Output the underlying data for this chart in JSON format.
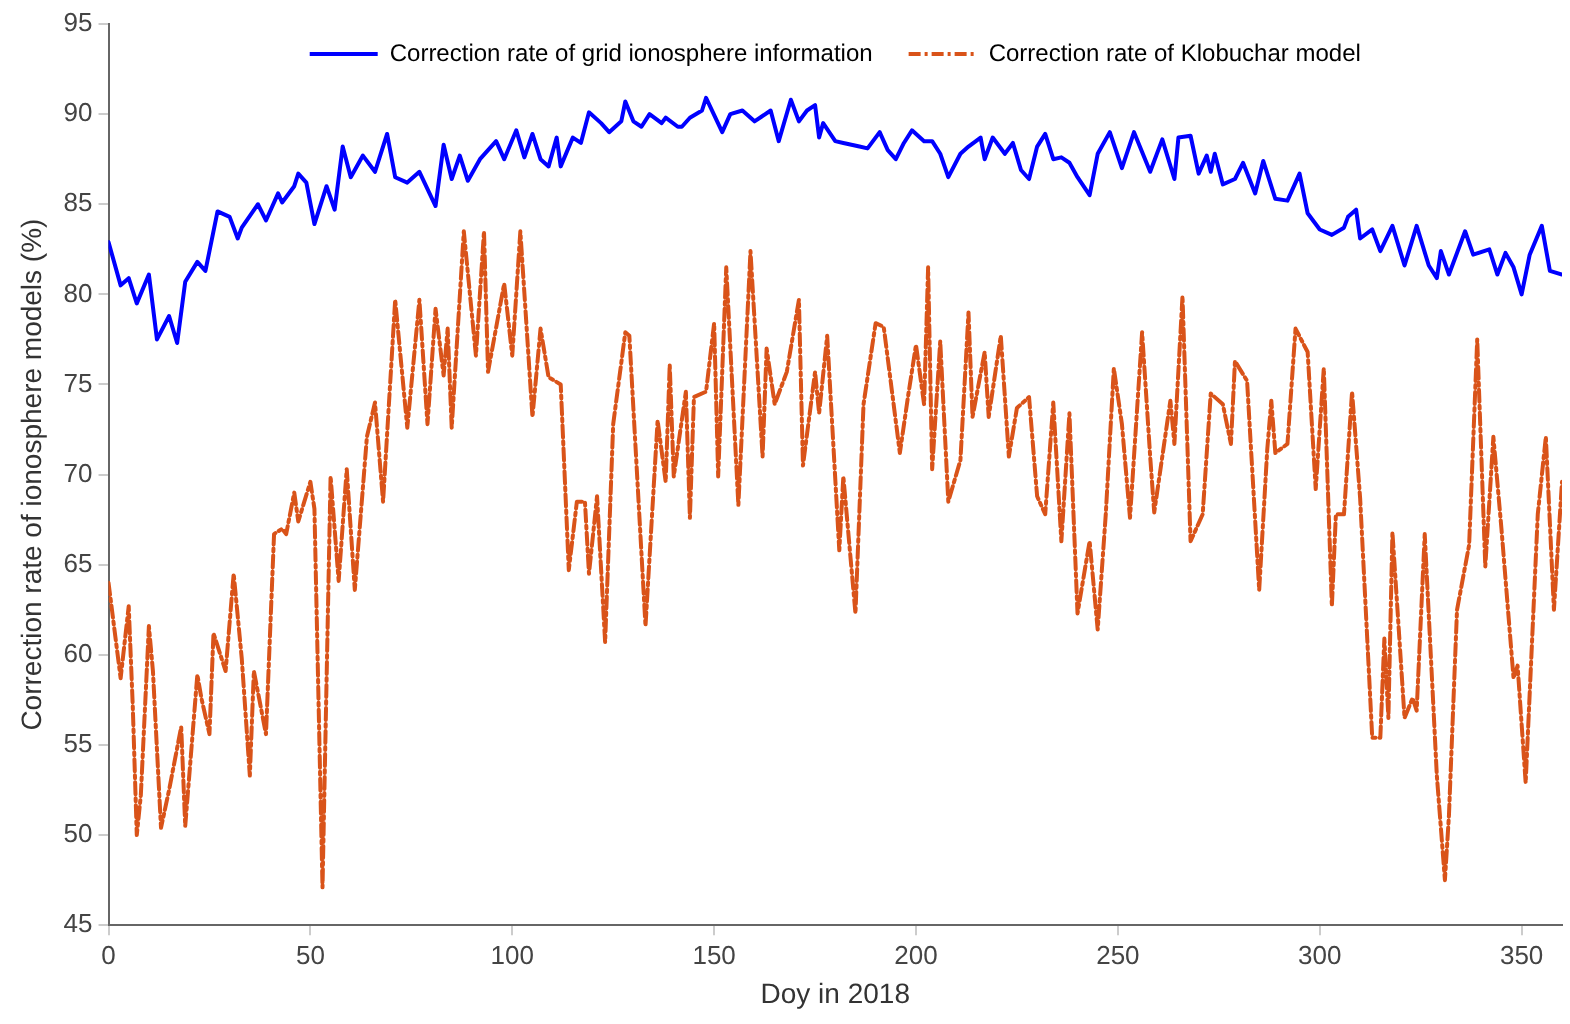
{
  "chart_data": {
    "type": "line",
    "xlabel": "Doy in 2018",
    "ylabel": "Correction rate of ionosphere models (%)",
    "xlim": [
      0,
      360
    ],
    "xticks": [
      0,
      50,
      100,
      150,
      200,
      250,
      300,
      350
    ],
    "ylim": [
      45,
      95
    ],
    "yticks": [
      45,
      50,
      55,
      60,
      65,
      70,
      75,
      80,
      85,
      90,
      95
    ],
    "grid": false,
    "legend": "top",
    "marker": "none",
    "series": [
      {
        "name": "Correction rate of grid ionosphere information",
        "color": "#0000ff",
        "line_style": "solid",
        "x": [
          0,
          3,
          5,
          7,
          10,
          12,
          15,
          17,
          19,
          22,
          24,
          27,
          30,
          32,
          33,
          37,
          39,
          42,
          43,
          46,
          47,
          49,
          51,
          54,
          56,
          58,
          60,
          63,
          66,
          69,
          71,
          74,
          77,
          81,
          83,
          85,
          87,
          89,
          92,
          96,
          98,
          101,
          103,
          105,
          107,
          109,
          111,
          112,
          115,
          117,
          119,
          122,
          124,
          127,
          128,
          130,
          132,
          134,
          137,
          138,
          141,
          142,
          144,
          147,
          148,
          152,
          154,
          157,
          160,
          164,
          166,
          169,
          171,
          173,
          175,
          176,
          177,
          180,
          182,
          186,
          188,
          191,
          193,
          195,
          197,
          199,
          202,
          204,
          206,
          208,
          211,
          213,
          216,
          217,
          219,
          222,
          224,
          226,
          228,
          230,
          232,
          234,
          236,
          238,
          240,
          243,
          245,
          248,
          251,
          254,
          258,
          261,
          264,
          265,
          268,
          270,
          272,
          273,
          274,
          276,
          279,
          281,
          284,
          286,
          289,
          292,
          295,
          297,
          300,
          303,
          306,
          307,
          309,
          310,
          313,
          315,
          318,
          321,
          324,
          327,
          329,
          330,
          332,
          336,
          338,
          342,
          344,
          346,
          348,
          350,
          352,
          355,
          357,
          360
        ],
        "values": [
          82.9,
          80.5,
          80.9,
          79.5,
          81.1,
          77.5,
          78.8,
          77.3,
          80.7,
          81.8,
          81.3,
          84.6,
          84.3,
          83.1,
          83.7,
          85,
          84.1,
          85.6,
          85.1,
          86,
          86.7,
          86.2,
          83.9,
          86,
          84.7,
          88.2,
          86.5,
          87.7,
          86.8,
          88.9,
          86.5,
          86.2,
          86.8,
          84.9,
          88.3,
          86.4,
          87.7,
          86.3,
          87.5,
          88.5,
          87.5,
          89.1,
          87.6,
          88.9,
          87.5,
          87.1,
          88.7,
          87.1,
          88.7,
          88.4,
          90.1,
          89.5,
          89,
          89.6,
          90.7,
          89.6,
          89.3,
          90,
          89.5,
          89.8,
          89.3,
          89.3,
          89.8,
          90.2,
          90.9,
          89,
          90,
          90.2,
          89.6,
          90.2,
          88.5,
          90.8,
          89.6,
          90.2,
          90.5,
          88.7,
          89.5,
          88.5,
          88.4,
          88.2,
          88.1,
          89,
          88,
          87.5,
          88.4,
          89.1,
          88.5,
          88.5,
          87.8,
          86.5,
          87.8,
          88.2,
          88.7,
          87.5,
          88.7,
          87.8,
          88.4,
          86.9,
          86.4,
          88.2,
          88.9,
          87.5,
          87.6,
          87.3,
          86.5,
          85.5,
          87.8,
          89,
          87,
          89,
          86.8,
          88.6,
          86.4,
          88.7,
          88.8,
          86.7,
          87.7,
          86.8,
          87.8,
          86.1,
          86.4,
          87.3,
          85.6,
          87.4,
          85.3,
          85.2,
          86.7,
          84.5,
          83.6,
          83.3,
          83.7,
          84.3,
          84.7,
          83.1,
          83.6,
          82.4,
          83.8,
          81.6,
          83.8,
          81.6,
          80.9,
          82.4,
          81.1,
          83.5,
          82.2,
          82.5,
          81.1,
          82.3,
          81.5,
          80,
          82.2,
          83.8,
          81.3,
          81.1
        ]
      },
      {
        "name": "Correction rate of Klobuchar model",
        "color": "#d95319",
        "line_style": "dashed",
        "x": [
          0,
          3,
          5,
          6,
          7,
          8,
          10,
          11,
          13,
          15,
          18,
          19,
          22,
          23,
          25,
          26,
          29,
          31,
          33,
          35,
          36,
          39,
          41,
          43,
          44,
          46,
          47,
          50,
          51,
          53,
          55,
          57,
          59,
          61,
          64,
          66,
          68,
          71,
          74,
          77,
          79,
          81,
          83,
          84,
          85,
          88,
          91,
          93,
          94,
          98,
          100,
          102,
          105,
          107,
          109,
          112,
          114,
          116,
          118,
          119,
          121,
          123,
          125,
          128,
          129,
          133,
          136,
          138,
          139,
          140,
          143,
          144,
          145,
          148,
          150,
          151,
          153,
          156,
          159,
          162,
          163,
          165,
          168,
          171,
          172,
          175,
          176,
          178,
          181,
          182,
          185,
          187,
          190,
          192,
          196,
          198,
          200,
          202,
          203,
          204,
          206,
          208,
          211,
          213,
          214,
          217,
          218,
          221,
          223,
          225,
          228,
          230,
          232,
          234,
          236,
          238,
          240,
          243,
          245,
          247,
          249,
          251,
          253,
          256,
          258,
          259,
          263,
          264,
          266,
          268,
          271,
          273,
          276,
          278,
          279,
          282,
          285,
          287,
          288,
          289,
          292,
          294,
          297,
          299,
          301,
          303,
          304,
          306,
          308,
          310,
          313,
          315,
          316,
          317,
          318,
          321,
          323,
          324,
          326,
          329,
          331,
          332,
          334,
          337,
          339,
          341,
          343,
          345,
          348,
          349,
          351,
          354,
          356,
          358,
          360
        ],
        "values": [
          64,
          58.7,
          62.7,
          57.2,
          50,
          52.2,
          61.6,
          59.1,
          50.4,
          52.5,
          56,
          50.5,
          58.9,
          57.6,
          55.6,
          61.2,
          59.1,
          64.5,
          59.8,
          53.3,
          59.1,
          55.6,
          66.7,
          67,
          66.7,
          69,
          67.4,
          69.6,
          68.1,
          47.1,
          69.9,
          64.1,
          70.3,
          63.6,
          72.1,
          74,
          68.5,
          79.7,
          72.6,
          79.7,
          72.8,
          79.2,
          75.5,
          78.1,
          72.6,
          83.5,
          76.6,
          83.5,
          75.7,
          80.6,
          76.6,
          83.5,
          73.2,
          78.1,
          75.4,
          75,
          64.7,
          68.5,
          68.5,
          64.5,
          68.8,
          60.7,
          72.8,
          77.9,
          77.7,
          61.6,
          73,
          69.6,
          76.1,
          69.9,
          74.6,
          67.6,
          74.3,
          74.6,
          78.4,
          69.9,
          81.5,
          68.3,
          82.4,
          71,
          77,
          73.9,
          75.7,
          79.7,
          70.5,
          75.7,
          73.4,
          77.7,
          65.8,
          69.9,
          62.3,
          73.9,
          78.4,
          78.2,
          71.2,
          74.3,
          77.2,
          73.9,
          81.5,
          70.3,
          77.4,
          68.5,
          70.8,
          79,
          73.2,
          76.8,
          73.2,
          77.7,
          71,
          73.7,
          74.3,
          68.8,
          67.8,
          74,
          66.3,
          73.4,
          62.3,
          66.3,
          61.4,
          67.8,
          75.9,
          72.8,
          67.6,
          77.9,
          71,
          67.9,
          74.1,
          71.7,
          79.9,
          66.3,
          67.8,
          74.5,
          73.9,
          71.7,
          76.3,
          75.2,
          63.6,
          71.4,
          74.1,
          71.2,
          71.7,
          78.1,
          76.8,
          69.2,
          75.9,
          62.7,
          67.8,
          67.8,
          74.6,
          68.7,
          55.4,
          55.4,
          60.9,
          56.5,
          66.8,
          56.5,
          57.6,
          56.9,
          66.7,
          53.3,
          47.5,
          51.1,
          62.5,
          66.1,
          77.5,
          64.9,
          72.1,
          67,
          58.7,
          59.4,
          52.9,
          67.8,
          72.1,
          62.5,
          69.6
        ]
      }
    ]
  }
}
